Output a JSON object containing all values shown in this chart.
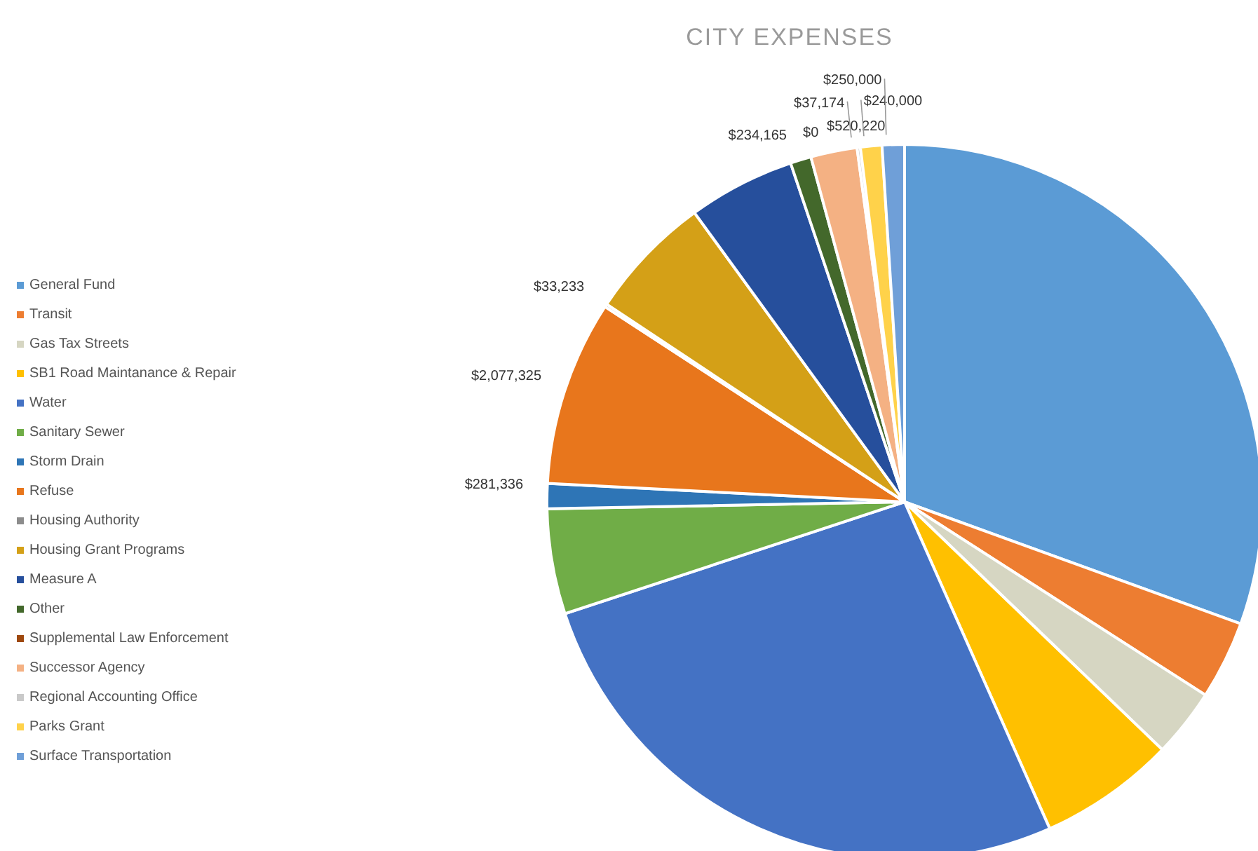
{
  "chart_data": {
    "type": "pie",
    "title": "CITY EXPENSES",
    "categories": [
      "General Fund",
      "Transit",
      "Gas Tax Streets",
      "SB1 Road Maintanance & Repair",
      "Water",
      "Sanitary Sewer",
      "Storm Drain",
      "Refuse",
      "Housing Authority",
      "Housing Grant Programs",
      "Measure A",
      "Other",
      "Supplemental Law Enforcement",
      "Successor Agency",
      "Regional Accounting Office",
      "Parks Grant",
      "Surface Transportation"
    ],
    "values": [
      7580000,
      880000,
      770000,
      1529000,
      6600000,
      1180000,
      281336,
      2077325,
      33233,
      1408000,
      1200000,
      234165,
      0,
      520220,
      37174,
      240000,
      250000
    ],
    "colors": [
      "#5b9bd5",
      "#ed7d31",
      "#d6d6c2",
      "#ffc000",
      "#4472c4",
      "#70ad47",
      "#2e75b6",
      "#e8761c",
      "#8c8c8c",
      "#d4a017",
      "#264f9c",
      "#43682b",
      "#9e480e",
      "#f4b183",
      "#c9c9c9",
      "#ffd24a",
      "#6f9fd8"
    ],
    "value_labels": [
      null,
      null,
      null,
      null,
      null,
      null,
      "$281,336",
      "$2,077,325",
      "$33,233",
      null,
      null,
      "$234,165",
      "$0",
      "$520,220",
      "$37,174",
      "$240,000",
      "$250,000"
    ],
    "legend": "left"
  }
}
